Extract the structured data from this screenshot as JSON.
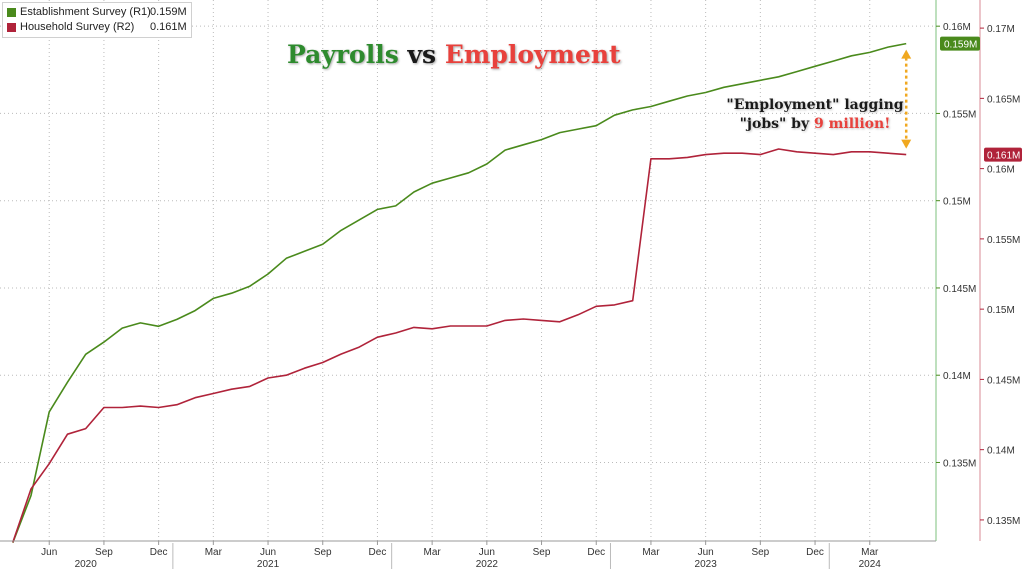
{
  "legend": {
    "items": [
      {
        "name": "Establishment Survey (R1)",
        "value": "0.159M",
        "color": "#4a8a1c"
      },
      {
        "name": "Household Survey (R2)",
        "value": "0.161M",
        "color": "#b0233a"
      }
    ]
  },
  "title": {
    "part1": "Payrolls",
    "part2": "vs",
    "part3": "Employment",
    "color1": "#2e8b2e",
    "color2": "#1a1a1a",
    "color3": "#e8413c"
  },
  "annotation": {
    "line1": "\"Employment\" lagging",
    "line2_prefix": "\"jobs\" by ",
    "line2_highlight": "9 million!",
    "arrow_color": "#f0a820"
  },
  "chart_data": {
    "type": "line",
    "x": [
      "2020-04",
      "2020-05",
      "2020-06",
      "2020-07",
      "2020-08",
      "2020-09",
      "2020-10",
      "2020-11",
      "2020-12",
      "2021-01",
      "2021-02",
      "2021-03",
      "2021-04",
      "2021-05",
      "2021-06",
      "2021-07",
      "2021-08",
      "2021-09",
      "2021-10",
      "2021-11",
      "2021-12",
      "2022-01",
      "2022-02",
      "2022-03",
      "2022-04",
      "2022-05",
      "2022-06",
      "2022-07",
      "2022-08",
      "2022-09",
      "2022-10",
      "2022-11",
      "2022-12",
      "2023-01",
      "2023-02",
      "2023-03",
      "2023-04",
      "2023-05",
      "2023-06",
      "2023-07",
      "2023-08",
      "2023-09",
      "2023-10",
      "2023-11",
      "2023-12",
      "2024-01",
      "2024-02",
      "2024-03",
      "2024-04",
      "2024-05"
    ],
    "x_ticks": [
      {
        "date": "2020-06",
        "label": "Jun"
      },
      {
        "date": "2020-09",
        "label": "Sep"
      },
      {
        "date": "2020-12",
        "label": "Dec"
      },
      {
        "date": "2021-03",
        "label": "Mar"
      },
      {
        "date": "2021-06",
        "label": "Jun"
      },
      {
        "date": "2021-09",
        "label": "Sep"
      },
      {
        "date": "2021-12",
        "label": "Dec"
      },
      {
        "date": "2022-03",
        "label": "Mar"
      },
      {
        "date": "2022-06",
        "label": "Jun"
      },
      {
        "date": "2022-09",
        "label": "Sep"
      },
      {
        "date": "2022-12",
        "label": "Dec"
      },
      {
        "date": "2023-03",
        "label": "Mar"
      },
      {
        "date": "2023-06",
        "label": "Jun"
      },
      {
        "date": "2023-09",
        "label": "Sep"
      },
      {
        "date": "2023-12",
        "label": "Dec"
      },
      {
        "date": "2024-03",
        "label": "Mar"
      }
    ],
    "years": [
      {
        "label": "2020",
        "center": "2020-08"
      },
      {
        "label": "2021",
        "center": "2021-06"
      },
      {
        "label": "2022",
        "center": "2022-06"
      },
      {
        "label": "2023",
        "center": "2023-06"
      },
      {
        "label": "2024",
        "center": "2024-03"
      }
    ],
    "year_dividers": [
      "2021-01",
      "2022-01",
      "2023-01",
      "2024-01"
    ],
    "start": "2020-03-10",
    "end": "2024-06-20",
    "series": [
      {
        "name": "Establishment Survey (R1)",
        "axis": "R1",
        "color": "#4a8a1c",
        "values": [
          0.1304,
          0.1331,
          0.1379,
          0.1396,
          0.1412,
          0.1419,
          0.1427,
          0.143,
          0.1428,
          0.1432,
          0.1437,
          0.1444,
          0.1447,
          0.1451,
          0.1458,
          0.1467,
          0.1471,
          0.1475,
          0.1483,
          0.1489,
          0.1495,
          0.1497,
          0.1505,
          0.151,
          0.1513,
          0.1516,
          0.1521,
          0.1529,
          0.1532,
          0.1535,
          0.1539,
          0.1541,
          0.1543,
          0.1549,
          0.1552,
          0.1554,
          0.1557,
          0.156,
          0.1562,
          0.1565,
          0.1567,
          0.1569,
          0.1571,
          0.1574,
          0.1577,
          0.158,
          0.1583,
          0.1585,
          0.1588,
          0.159
        ]
      },
      {
        "name": "Household Survey (R2)",
        "axis": "R2",
        "color": "#b0233a",
        "values": [
          0.1334,
          0.1372,
          0.139,
          0.1411,
          0.1415,
          0.143,
          0.143,
          0.1431,
          0.143,
          0.1432,
          0.1437,
          0.144,
          0.1443,
          0.1445,
          0.1451,
          0.1453,
          0.1458,
          0.1462,
          0.1468,
          0.1473,
          0.148,
          0.1483,
          0.1487,
          0.1486,
          0.1488,
          0.1488,
          0.1488,
          0.1492,
          0.1493,
          0.1492,
          0.1491,
          0.1496,
          0.1502,
          0.1503,
          0.1506,
          0.1607,
          0.1607,
          0.1608,
          0.161,
          0.1611,
          0.1611,
          0.161,
          0.1614,
          0.1612,
          0.1611,
          0.161,
          0.1612,
          0.1612,
          0.1611,
          0.161
        ]
      }
    ],
    "r1_axis": {
      "min": 0.1305,
      "max": 0.1615,
      "ticks": [
        "0.135M",
        "0.14M",
        "0.145M",
        "0.15M",
        "0.155M",
        "0.16M"
      ],
      "tick_values": [
        0.135,
        0.14,
        0.145,
        0.15,
        0.155,
        0.16
      ],
      "last_label": "0.159M",
      "last_color": "#4a8a1c"
    },
    "r2_axis": {
      "min": 0.1335,
      "max": 0.172,
      "ticks": [
        "0.135M",
        "0.14M",
        "0.145M",
        "0.15M",
        "0.155M",
        "0.16M",
        "0.165M",
        "0.17M"
      ],
      "tick_values": [
        0.135,
        0.14,
        0.145,
        0.15,
        0.155,
        0.16,
        0.165,
        0.17
      ],
      "last_label": "0.161M",
      "last_color": "#b0233a"
    }
  }
}
